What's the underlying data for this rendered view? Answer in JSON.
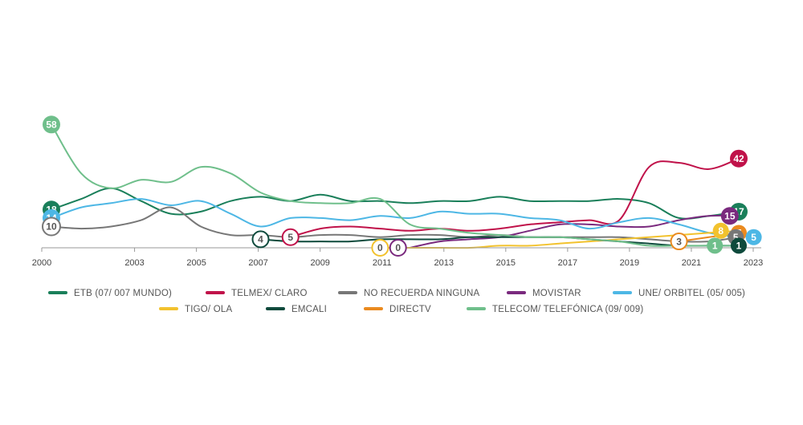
{
  "chart_data": {
    "type": "line",
    "x": [
      2000,
      2001,
      2002,
      2003,
      2004,
      2005,
      2006,
      2007,
      2008,
      2009,
      2010,
      2011,
      2012,
      2013,
      2014,
      2015,
      2016,
      2017,
      2018,
      2019,
      2020,
      2021,
      2022,
      2023
    ],
    "x_ticks": [
      "2000",
      "2003",
      "2005",
      "2007",
      "2009",
      "2011",
      "2013",
      "2015",
      "2017",
      "2019",
      "2021",
      "2023"
    ],
    "ylim": [
      0,
      60
    ],
    "series": [
      {
        "name": "ETB (07/ 007 MUNDO)",
        "color": "#1a7f5a",
        "values": [
          18,
          23,
          28,
          22,
          16,
          17,
          22,
          24,
          22,
          25,
          22,
          22,
          21,
          22,
          22,
          24,
          22,
          22,
          22,
          23,
          21,
          14,
          15,
          17
        ]
      },
      {
        "name": "TELMEX/ CLARO",
        "color": "#c0124a",
        "values": [
          null,
          null,
          null,
          null,
          null,
          null,
          null,
          null,
          5,
          9,
          10,
          9,
          8,
          9,
          8,
          9,
          11,
          12,
          13,
          13,
          38,
          40,
          37,
          42
        ]
      },
      {
        "name": "NO RECUERDA NINGUNA",
        "color": "#777777",
        "values": [
          10,
          9,
          10,
          13,
          19,
          10,
          6,
          6,
          5,
          6,
          6,
          5,
          6,
          6,
          5,
          6,
          5,
          5,
          5,
          5,
          4,
          3,
          3,
          5
        ]
      },
      {
        "name": "MOVISTAR",
        "color": "#7a2a7e",
        "values": [
          null,
          null,
          null,
          null,
          null,
          null,
          null,
          null,
          null,
          null,
          null,
          null,
          0,
          3,
          4,
          5,
          8,
          11,
          11,
          10,
          10,
          13,
          15,
          15
        ]
      },
      {
        "name": "UNE/ ORBITEL (05/ 005)",
        "color": "#4db7e5",
        "values": [
          14,
          19,
          21,
          23,
          20,
          22,
          16,
          10,
          14,
          14,
          13,
          15,
          14,
          17,
          16,
          16,
          14,
          13,
          9,
          12,
          14,
          11,
          7,
          5
        ]
      },
      {
        "name": "TIGO/ OLA",
        "color": "#f2c22e",
        "values": [
          null,
          null,
          null,
          null,
          null,
          null,
          null,
          null,
          null,
          null,
          null,
          0,
          0,
          0,
          0,
          1,
          1,
          2,
          3,
          4,
          5,
          6,
          7,
          8
        ]
      },
      {
        "name": "EMCALI",
        "color": "#0e4a3c",
        "values": [
          null,
          null,
          null,
          null,
          null,
          null,
          null,
          4,
          3,
          3,
          3,
          4,
          4,
          4,
          5,
          5,
          5,
          5,
          4,
          3,
          2,
          1,
          1,
          1
        ]
      },
      {
        "name": "DIRECTV",
        "color": "#ea8a1f",
        "values": [
          null,
          null,
          null,
          null,
          null,
          null,
          null,
          null,
          null,
          null,
          null,
          null,
          null,
          null,
          null,
          null,
          null,
          null,
          null,
          null,
          null,
          3,
          5,
          7
        ]
      },
      {
        "name": "TELECOM/ TELEFÓNICA (09/ 009)",
        "color": "#6fbf8b",
        "values": [
          58,
          35,
          28,
          32,
          31,
          38,
          35,
          26,
          22,
          21,
          21,
          23,
          11,
          9,
          7,
          6,
          5,
          5,
          4,
          3,
          1,
          1,
          1,
          1
        ]
      }
    ],
    "badges": [
      {
        "series": 8,
        "year": 2000,
        "value": 58,
        "label": "58"
      },
      {
        "series": 0,
        "year": 2000,
        "value": 18,
        "label": "18"
      },
      {
        "series": 4,
        "year": 2000,
        "value": 14,
        "label": "14"
      },
      {
        "series": 2,
        "year": 2000,
        "value": 10,
        "label": "10"
      },
      {
        "series": 6,
        "year": 2007,
        "value": 4,
        "label": "4"
      },
      {
        "series": 1,
        "year": 2008,
        "value": 5,
        "label": "5"
      },
      {
        "series": 5,
        "year": 2011,
        "value": 0,
        "label": "0"
      },
      {
        "series": 3,
        "year": 2011.6,
        "value": 0,
        "label": "0"
      },
      {
        "series": 7,
        "year": 2021,
        "value": 3,
        "label": "3"
      },
      {
        "series": 1,
        "year": 2023,
        "value": 42,
        "label": "42"
      },
      {
        "series": 0,
        "year": 2023,
        "value": 17,
        "label": "17"
      },
      {
        "series": 3,
        "year": 2022.7,
        "value": 15,
        "label": "15"
      },
      {
        "series": 7,
        "year": 2023,
        "value": 7,
        "label": "7"
      },
      {
        "series": 5,
        "year": 2022.4,
        "value": 8,
        "label": "8"
      },
      {
        "series": 2,
        "year": 2022.9,
        "value": 5,
        "label": "5"
      },
      {
        "series": 4,
        "year": 2023.5,
        "value": 5,
        "label": "5"
      },
      {
        "series": 8,
        "year": 2022.2,
        "value": 1,
        "label": "1"
      },
      {
        "series": 6,
        "year": 2023,
        "value": 1,
        "label": "1"
      }
    ]
  }
}
